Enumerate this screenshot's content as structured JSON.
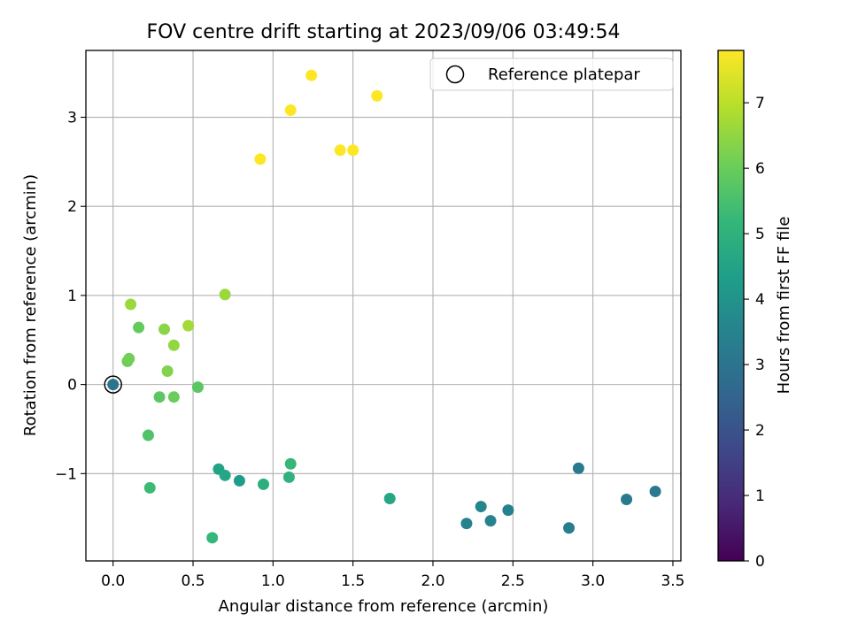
{
  "chart_data": {
    "type": "scatter",
    "title": "FOV centre drift starting at 2023/09/06 03:49:54",
    "xlabel": "Angular distance from reference (arcmin)",
    "ylabel": "Rotation from reference (arcmin)",
    "xlim": [
      -0.17,
      3.55
    ],
    "ylim": [
      -1.98,
      3.75
    ],
    "xticks": [
      0.0,
      0.5,
      1.0,
      1.5,
      2.0,
      2.5,
      3.0,
      3.5
    ],
    "xtick_labels": [
      "0.0",
      "0.5",
      "1.0",
      "1.5",
      "2.0",
      "2.5",
      "3.0",
      "3.5"
    ],
    "yticks": [
      -1,
      0,
      1,
      2,
      3
    ],
    "ytick_labels": [
      "−1",
      "0",
      "1",
      "2",
      "3"
    ],
    "grid": true,
    "legend": {
      "placement": "top-right",
      "entries": [
        {
          "label": "Reference platepar",
          "marker": "open-circle"
        }
      ]
    },
    "colorbar": {
      "label": "Hours from first FF file",
      "colormap": "viridis",
      "range": [
        0,
        7.8
      ],
      "ticks": [
        0,
        1,
        2,
        3,
        4,
        5,
        6,
        7
      ],
      "tick_labels": [
        "0",
        "1",
        "2",
        "3",
        "4",
        "5",
        "6",
        "7"
      ],
      "stops": [
        "#440154",
        "#482878",
        "#3e4989",
        "#31688e",
        "#26828e",
        "#1f9e89",
        "#35b779",
        "#6ece58",
        "#b5de2b",
        "#fde725"
      ]
    },
    "reference_point": {
      "x": 0.0,
      "y": 0.0
    },
    "points": [
      {
        "x": 0.0,
        "y": 0.0,
        "c": 3.0
      },
      {
        "x": 3.39,
        "y": -1.2,
        "c": 3.2
      },
      {
        "x": 3.21,
        "y": -1.29,
        "c": 3.2
      },
      {
        "x": 2.91,
        "y": -0.94,
        "c": 3.2
      },
      {
        "x": 2.85,
        "y": -1.61,
        "c": 3.3
      },
      {
        "x": 2.47,
        "y": -1.41,
        "c": 3.4
      },
      {
        "x": 2.36,
        "y": -1.53,
        "c": 3.5
      },
      {
        "x": 2.21,
        "y": -1.56,
        "c": 3.5
      },
      {
        "x": 2.3,
        "y": -1.37,
        "c": 3.6
      },
      {
        "x": 1.73,
        "y": -1.28,
        "c": 4.6
      },
      {
        "x": 0.79,
        "y": -1.08,
        "c": 4.3
      },
      {
        "x": 0.66,
        "y": -0.95,
        "c": 4.5
      },
      {
        "x": 0.7,
        "y": -1.02,
        "c": 4.6
      },
      {
        "x": 0.94,
        "y": -1.12,
        "c": 4.9
      },
      {
        "x": 1.1,
        "y": -1.04,
        "c": 5.0
      },
      {
        "x": 1.11,
        "y": -0.89,
        "c": 5.2
      },
      {
        "x": 0.62,
        "y": -1.72,
        "c": 5.2
      },
      {
        "x": 0.23,
        "y": -1.16,
        "c": 5.3
      },
      {
        "x": 0.22,
        "y": -0.57,
        "c": 5.6
      },
      {
        "x": 0.29,
        "y": -0.14,
        "c": 5.8
      },
      {
        "x": 0.53,
        "y": -0.03,
        "c": 5.8
      },
      {
        "x": 0.38,
        "y": -0.14,
        "c": 6.0
      },
      {
        "x": 0.16,
        "y": 0.64,
        "c": 5.9
      },
      {
        "x": 0.09,
        "y": 0.26,
        "c": 6.0
      },
      {
        "x": 0.1,
        "y": 0.29,
        "c": 6.1
      },
      {
        "x": 0.34,
        "y": 0.15,
        "c": 6.3
      },
      {
        "x": 0.32,
        "y": 0.62,
        "c": 6.4
      },
      {
        "x": 0.38,
        "y": 0.44,
        "c": 6.5
      },
      {
        "x": 0.11,
        "y": 0.9,
        "c": 6.6
      },
      {
        "x": 0.47,
        "y": 0.66,
        "c": 6.7
      },
      {
        "x": 0.7,
        "y": 1.01,
        "c": 6.6
      },
      {
        "x": 0.92,
        "y": 2.53,
        "c": 7.8
      },
      {
        "x": 1.11,
        "y": 3.08,
        "c": 7.8
      },
      {
        "x": 1.24,
        "y": 3.47,
        "c": 7.8
      },
      {
        "x": 1.42,
        "y": 2.63,
        "c": 7.8
      },
      {
        "x": 1.5,
        "y": 2.63,
        "c": 7.8
      },
      {
        "x": 1.65,
        "y": 3.24,
        "c": 7.8
      }
    ]
  }
}
